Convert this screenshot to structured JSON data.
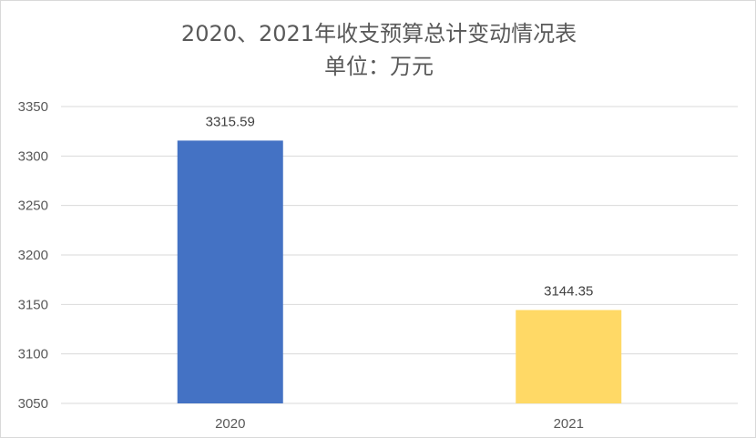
{
  "chart_data": {
    "type": "bar",
    "title": "2020、2021年收支预算总计变动情况表",
    "subtitle": "单位：万元",
    "categories": [
      "2020",
      "2021"
    ],
    "values": [
      3315.59,
      3144.35
    ],
    "data_labels": [
      "3315.59",
      "3144.35"
    ],
    "bar_colors": [
      "#4472c4",
      "#ffd966"
    ],
    "ylim": [
      3050,
      3350
    ],
    "yticks": [
      3050,
      3100,
      3150,
      3200,
      3250,
      3300,
      3350
    ],
    "gridlines": true,
    "legend": "none",
    "xlabel": "",
    "ylabel": ""
  },
  "colors": {
    "grid": "#d9d9d9",
    "text": "#595959"
  }
}
